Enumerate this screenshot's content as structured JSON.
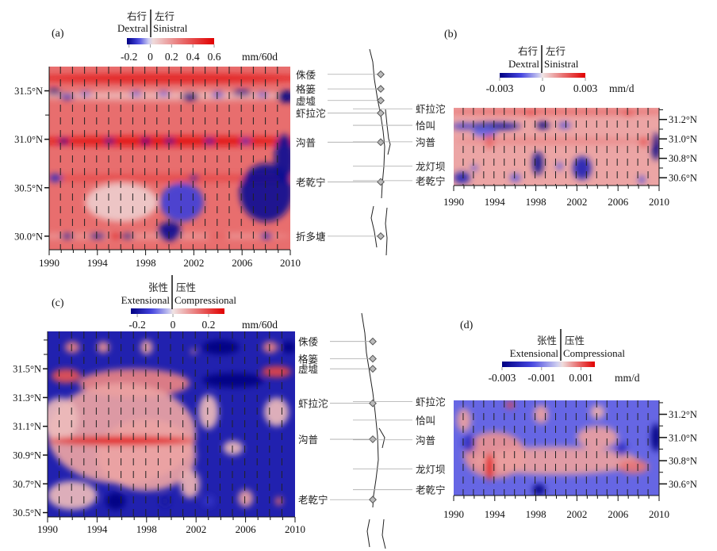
{
  "chart_data": [
    {
      "panel": "(a)",
      "type": "heatmap",
      "x_range": [
        1990,
        2010
      ],
      "y_range": [
        29.86,
        31.75
      ],
      "x_ticks": [
        {
          "label": "1990",
          "value": 1990
        },
        {
          "label": "1994",
          "value": 1994
        },
        {
          "label": "1998",
          "value": 1998
        },
        {
          "label": "2002",
          "value": 2002
        },
        {
          "label": "2006",
          "value": 2006
        },
        {
          "label": "2010",
          "value": 2010
        }
      ],
      "y_ticks": [
        {
          "label": "31.5°N",
          "value": 31.5
        },
        {
          "label": "31.0°N",
          "value": 31.0
        },
        {
          "label": "30.5°N",
          "value": 30.5
        },
        {
          "label": "30.0°N",
          "value": 30.0
        }
      ],
      "minor_y_ticks": [
        31.25
      ],
      "y_axis_side": "left",
      "colorbar": {
        "cn_left": "右行",
        "cn_right": "左行",
        "en_left": "Dextral",
        "en_right": "Sinistral",
        "range": [
          -0.22,
          0.6
        ],
        "ticks": [
          {
            "label": "-0.2",
            "value": -0.2
          },
          {
            "label": "0",
            "value": 0
          },
          {
            "label": "0.2",
            "value": 0.2
          },
          {
            "label": "0.4",
            "value": 0.4
          },
          {
            "label": "0.6",
            "value": 0.6
          }
        ],
        "unit": "mm/60d"
      },
      "sites": [
        {
          "name": "侏倭",
          "lat": 31.67
        },
        {
          "name": "格篓",
          "lat": 31.52
        },
        {
          "name": "虚墟",
          "lat": 31.4
        },
        {
          "name": "虾拉沱",
          "lat": 31.27
        },
        {
          "name": "沟普",
          "lat": 30.97
        },
        {
          "name": "老乾宁",
          "lat": 30.56
        },
        {
          "name": "折多塘",
          "lat": 30.0
        }
      ],
      "base_value": 0.3,
      "anomalies": [
        [
          2000,
          31.63,
          0.5,
          12,
          0.05
        ],
        [
          2000,
          31.45,
          0.12,
          12,
          0.05
        ],
        [
          1990.4,
          31.49,
          -0.22,
          0.6,
          0.03
        ],
        [
          1991.5,
          31.44,
          -0.15,
          0.6,
          0.03
        ],
        [
          1993,
          31.47,
          -0.08,
          0.5,
          0.02
        ],
        [
          1997.2,
          31.47,
          -0.1,
          0.5,
          0.02
        ],
        [
          1999.5,
          31.47,
          -0.1,
          0.5,
          0.02
        ],
        [
          2001.7,
          31.44,
          -0.22,
          0.7,
          0.04
        ],
        [
          2004,
          31.46,
          -0.12,
          0.5,
          0.03
        ],
        [
          2006,
          31.48,
          -0.2,
          0.8,
          0.03
        ],
        [
          2007.7,
          31.46,
          -0.1,
          0.5,
          0.02
        ],
        [
          2009.7,
          31.44,
          -0.22,
          0.8,
          0.06
        ],
        [
          2000,
          30.98,
          0.55,
          12,
          0.05
        ],
        [
          1991.2,
          30.98,
          -0.22,
          0.4,
          0.03
        ],
        [
          1995,
          30.98,
          -0.2,
          0.4,
          0.03
        ],
        [
          1998,
          30.98,
          -0.22,
          0.4,
          0.03
        ],
        [
          2000,
          30.98,
          -0.2,
          0.4,
          0.03
        ],
        [
          2003.3,
          30.98,
          -0.18,
          0.4,
          0.03
        ],
        [
          2006.3,
          30.98,
          -0.15,
          0.4,
          0.03
        ],
        [
          2000,
          30.6,
          0.4,
          12,
          0.04
        ],
        [
          2002,
          30.6,
          -0.2,
          0.4,
          0.03
        ],
        [
          1990.5,
          30.6,
          -0.15,
          0.6,
          0.04
        ],
        [
          2008,
          30.45,
          -0.2,
          2.2,
          0.3
        ],
        [
          2009.5,
          30.8,
          -0.2,
          0.8,
          0.25
        ],
        [
          2001,
          30.35,
          -0.12,
          1.8,
          0.2
        ],
        [
          1996,
          30.35,
          0.06,
          3,
          0.2
        ],
        [
          1998,
          30.0,
          0.2,
          12,
          0.04
        ],
        [
          1991.5,
          30.0,
          -0.2,
          0.5,
          0.03
        ],
        [
          1994,
          30.0,
          -0.2,
          0.7,
          0.03
        ],
        [
          1995.5,
          30.0,
          0.55,
          0.6,
          0.03
        ],
        [
          1996.5,
          30.0,
          -0.22,
          0.5,
          0.03
        ],
        [
          2000,
          30.05,
          -0.2,
          1,
          0.1
        ],
        [
          2004,
          30.0,
          0.35,
          1,
          0.03
        ],
        [
          2008,
          30.0,
          -0.15,
          0.5,
          0.03
        ]
      ]
    },
    {
      "panel": "(b)",
      "type": "heatmap",
      "x_range": [
        1990,
        2010
      ],
      "y_range": [
        30.52,
        31.32
      ],
      "x_ticks": [
        {
          "label": "1990",
          "value": 1990
        },
        {
          "label": "1994",
          "value": 1994
        },
        {
          "label": "1998",
          "value": 1998
        },
        {
          "label": "2002",
          "value": 2002
        },
        {
          "label": "2006",
          "value": 2006
        },
        {
          "label": "2010",
          "value": 2010
        }
      ],
      "y_ticks": [
        {
          "label": "31.2°N",
          "value": 31.2
        },
        {
          "label": "31.0°N",
          "value": 31.0
        },
        {
          "label": "30.8°N",
          "value": 30.8
        },
        {
          "label": "30.6°N",
          "value": 30.6
        }
      ],
      "minor_y_ticks": [
        31.3,
        31.1,
        30.9,
        30.7
      ],
      "y_axis_side": "right",
      "colorbar": {
        "cn_left": "右行",
        "cn_right": "左行",
        "en_left": "Dextral",
        "en_right": "Sinistral",
        "range": [
          -0.003,
          0.003
        ],
        "ticks": [
          {
            "label": "-0.003",
            "value": -0.003
          },
          {
            "label": "0",
            "value": 0
          },
          {
            "label": "0.003",
            "value": 0.003
          }
        ],
        "unit": "mm/d"
      },
      "sites": [
        {
          "name": "虾拉沱",
          "lat": 31.31
        },
        {
          "name": "恰叫",
          "lat": 31.14
        },
        {
          "name": "沟普",
          "lat": 30.97
        },
        {
          "name": "龙灯坝",
          "lat": 30.72
        },
        {
          "name": "老乾宁",
          "lat": 30.57
        }
      ],
      "base_value": 0.0008,
      "anomalies": [
        [
          2000,
          31.28,
          0.0016,
          12,
          0.03
        ],
        [
          1997.5,
          31.27,
          0.002,
          0.6,
          0.03
        ],
        [
          2007,
          31.27,
          0.002,
          0.5,
          0.03
        ],
        [
          1994,
          31.13,
          -0.0025,
          2.5,
          0.04
        ],
        [
          1991,
          31.13,
          -0.0018,
          1.2,
          0.03
        ],
        [
          1998.7,
          31.14,
          -0.003,
          0.6,
          0.04
        ],
        [
          2000.8,
          31.14,
          -0.0015,
          0.6,
          0.03
        ],
        [
          1993,
          31.07,
          -0.0012,
          1.2,
          0.05
        ],
        [
          1993.5,
          30.98,
          0.0025,
          0.5,
          0.06
        ],
        [
          2000,
          30.98,
          0.0012,
          10,
          0.03
        ],
        [
          2008.5,
          30.97,
          0.0018,
          0.4,
          0.05
        ],
        [
          2009.7,
          30.92,
          -0.003,
          0.4,
          0.14
        ],
        [
          1998.2,
          30.75,
          -0.0028,
          0.5,
          0.12
        ],
        [
          2002.5,
          30.7,
          -0.0022,
          0.9,
          0.12
        ],
        [
          1990.8,
          30.6,
          -0.0022,
          0.8,
          0.06
        ],
        [
          1992,
          30.7,
          -0.0015,
          0.3,
          0.03
        ],
        [
          2000.3,
          30.72,
          -0.0014,
          0.3,
          0.04
        ],
        [
          1996,
          30.6,
          -0.0014,
          0.5,
          0.04
        ],
        [
          2008.3,
          30.58,
          -0.0015,
          0.3,
          0.04
        ]
      ]
    },
    {
      "panel": "(c)",
      "type": "heatmap",
      "x_range": [
        1990,
        2010
      ],
      "y_range": [
        30.47,
        31.76
      ],
      "x_ticks": [
        {
          "label": "1990",
          "value": 1990
        },
        {
          "label": "1994",
          "value": 1994
        },
        {
          "label": "1998",
          "value": 1998
        },
        {
          "label": "2002",
          "value": 2002
        },
        {
          "label": "2006",
          "value": 2006
        },
        {
          "label": "2010",
          "value": 2010
        }
      ],
      "y_ticks": [
        {
          "label": "31.5°N",
          "value": 31.5
        },
        {
          "label": "31.3°N",
          "value": 31.3
        },
        {
          "label": "31.1°N",
          "value": 31.1
        },
        {
          "label": "30.9°N",
          "value": 30.9
        },
        {
          "label": "30.7°N",
          "value": 30.7
        },
        {
          "label": "30.5°N",
          "value": 30.5
        }
      ],
      "minor_y_ticks": [
        31.7,
        31.6
      ],
      "y_axis_side": "left",
      "colorbar": {
        "cn_left": "张性",
        "cn_right": "压性",
        "en_left": "Extensional",
        "en_right": "Compressional",
        "range": [
          -0.236,
          0.289
        ],
        "ticks": [
          {
            "label": "-0.2",
            "value": -0.2
          },
          {
            "label": "0",
            "value": 0
          },
          {
            "label": "0.2",
            "value": 0.2
          }
        ],
        "unit": "mm/60d"
      },
      "sites": [
        {
          "name": "侏倭",
          "lat": 31.69
        },
        {
          "name": "格篓",
          "lat": 31.57
        },
        {
          "name": "虚墟",
          "lat": 31.5
        },
        {
          "name": "虾拉沱",
          "lat": 31.26
        },
        {
          "name": "沟普",
          "lat": 31.01
        },
        {
          "name": "老乾宁",
          "lat": 30.59
        }
      ],
      "base_value": -0.18,
      "anomalies": [
        [
          1992,
          31.65,
          0.12,
          0.6,
          0.04
        ],
        [
          1994.5,
          31.65,
          0.1,
          0.5,
          0.04
        ],
        [
          1998,
          31.65,
          0.08,
          0.5,
          0.05
        ],
        [
          2001.8,
          31.62,
          0.1,
          0.2,
          0.02
        ],
        [
          2008,
          31.65,
          0.12,
          0.6,
          0.04
        ],
        [
          2004,
          31.65,
          -0.3,
          1.5,
          0.05
        ],
        [
          2009.5,
          31.65,
          -0.3,
          0.6,
          0.04
        ],
        [
          1997,
          31.4,
          0.12,
          4.5,
          0.1
        ],
        [
          1991.5,
          31.45,
          0.18,
          1.2,
          0.05
        ],
        [
          2008.5,
          31.48,
          0.2,
          1.2,
          0.04
        ],
        [
          2005,
          31.42,
          -0.35,
          2.5,
          0.05
        ],
        [
          1996,
          31.05,
          0.08,
          6,
          0.35
        ],
        [
          1991,
          31.15,
          0.05,
          1.5,
          0.15
        ],
        [
          1998,
          30.9,
          0.08,
          4,
          0.25
        ],
        [
          2003,
          31.2,
          0.05,
          0.8,
          0.12
        ],
        [
          2005,
          30.95,
          0.05,
          0.8,
          0.05
        ],
        [
          2008.5,
          31.2,
          0.05,
          1,
          0.1
        ],
        [
          1996,
          31.0,
          0.3,
          6,
          0.03
        ],
        [
          2001.5,
          30.7,
          0.06,
          0.8,
          0.1
        ],
        [
          1992,
          30.62,
          0.05,
          2,
          0.1
        ],
        [
          1995.5,
          30.58,
          -0.25,
          0.8,
          0.06
        ],
        [
          1999.5,
          30.58,
          -0.2,
          0.4,
          0.04
        ],
        [
          2003,
          30.58,
          -0.15,
          0.5,
          0.04
        ],
        [
          2006,
          30.6,
          0.08,
          0.6,
          0.06
        ],
        [
          2008.7,
          30.58,
          0.15,
          0.3,
          0.03
        ]
      ]
    },
    {
      "panel": "(d)",
      "type": "heatmap",
      "x_range": [
        1990,
        2010
      ],
      "y_range": [
        30.5,
        31.32
      ],
      "x_ticks": [
        {
          "label": "1990",
          "value": 1990
        },
        {
          "label": "1994",
          "value": 1994
        },
        {
          "label": "1998",
          "value": 1998
        },
        {
          "label": "2002",
          "value": 2002
        },
        {
          "label": "2006",
          "value": 2006
        },
        {
          "label": "2010",
          "value": 2010
        }
      ],
      "y_ticks": [
        {
          "label": "31.2°N",
          "value": 31.2
        },
        {
          "label": "31.0°N",
          "value": 31.0
        },
        {
          "label": "30.8°N",
          "value": 30.8
        },
        {
          "label": "30.6°N",
          "value": 30.6
        }
      ],
      "minor_y_ticks": [
        31.3,
        31.1,
        30.9,
        30.7
      ],
      "y_axis_side": "right",
      "colorbar": {
        "cn_left": "张性",
        "cn_right": "压性",
        "en_left": "Extensional",
        "en_right": "Compressional",
        "range": [
          -0.003,
          0.0017
        ],
        "ticks": [
          {
            "label": "-0.003",
            "value": -0.003
          },
          {
            "label": "-0.001",
            "value": -0.001
          },
          {
            "label": "0.001",
            "value": 0.001
          }
        ],
        "unit": "mm/d"
      },
      "sites": [
        {
          "name": "虾拉沱",
          "lat": 31.31
        },
        {
          "name": "恰叫",
          "lat": 31.15
        },
        {
          "name": "沟普",
          "lat": 30.98
        },
        {
          "name": "龙灯坝",
          "lat": 30.73
        },
        {
          "name": "老乾宁",
          "lat": 30.55
        }
      ],
      "base_value": -0.0012,
      "anomalies": [
        [
          1994,
          30.85,
          0.0006,
          3,
          0.2
        ],
        [
          2000,
          30.8,
          0.0005,
          8,
          0.12
        ],
        [
          2004,
          31.0,
          0.0005,
          2,
          0.1
        ],
        [
          1991,
          31.15,
          0.0005,
          0.7,
          0.1
        ],
        [
          1998.5,
          31.2,
          0.0005,
          0.7,
          0.08
        ],
        [
          2004,
          31.22,
          0.0004,
          0.7,
          0.06
        ],
        [
          1993.5,
          30.75,
          0.0016,
          0.4,
          0.12
        ],
        [
          1995.5,
          31.28,
          0.0012,
          0.4,
          0.03
        ],
        [
          2007.5,
          30.75,
          0.0008,
          1.5,
          0.06
        ],
        [
          2009.7,
          31.0,
          -0.003,
          0.5,
          0.12
        ],
        [
          1998.3,
          30.55,
          -0.003,
          0.6,
          0.05
        ],
        [
          1991.5,
          30.95,
          -0.002,
          0.6,
          0.08
        ],
        [
          2006.3,
          30.9,
          -0.002,
          0.6,
          0.06
        ]
      ]
    }
  ]
}
